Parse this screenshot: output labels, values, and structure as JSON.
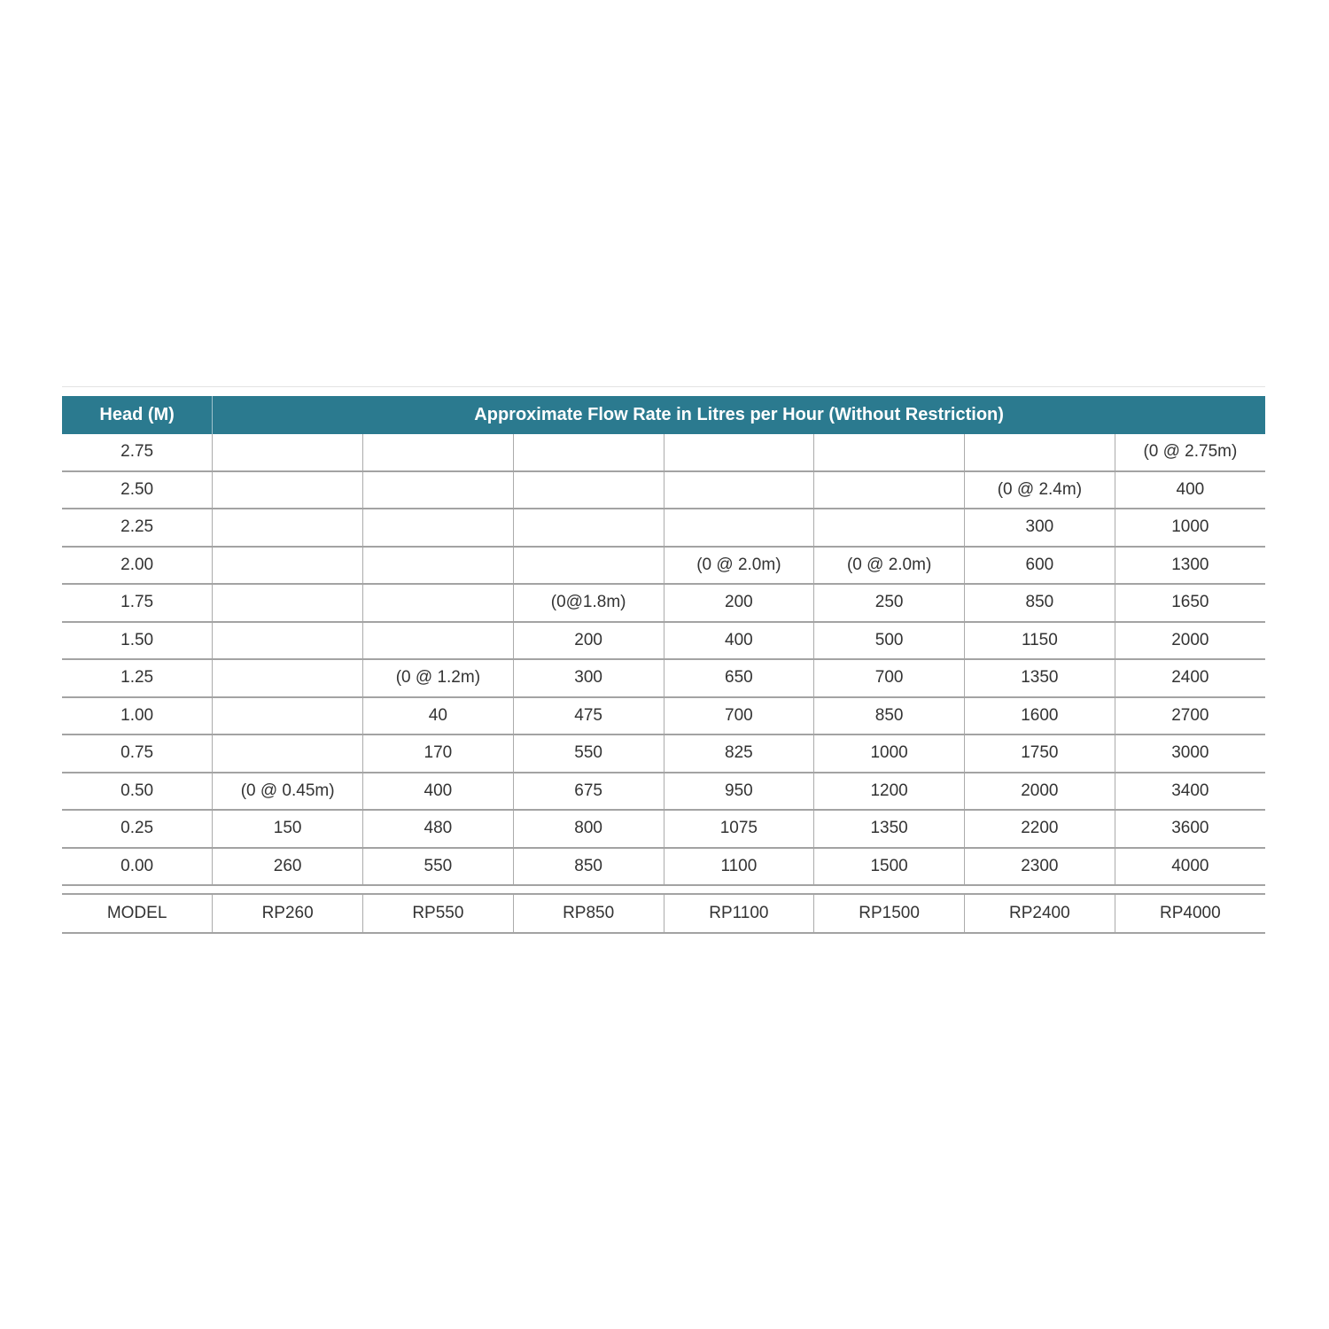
{
  "colors": {
    "header_bg": "#2B7A8F",
    "header_text": "#FFFFFF",
    "grid_line": "#A3A3A3",
    "cell_text": "#333333",
    "page_bg": "#FFFFFF"
  },
  "table": {
    "header": {
      "head_label": "Head (M)",
      "title": "Approximate Flow Rate in Litres per Hour (Without Restriction)"
    },
    "rows": [
      {
        "head": "2.75",
        "cells": [
          "",
          "",
          "",
          "",
          "",
          "",
          "(0 @ 2.75m)"
        ]
      },
      {
        "head": "2.50",
        "cells": [
          "",
          "",
          "",
          "",
          "",
          "(0 @ 2.4m)",
          "400"
        ]
      },
      {
        "head": "2.25",
        "cells": [
          "",
          "",
          "",
          "",
          "",
          "300",
          "1000"
        ]
      },
      {
        "head": "2.00",
        "cells": [
          "",
          "",
          "",
          "(0 @ 2.0m)",
          "(0 @ 2.0m)",
          "600",
          "1300"
        ]
      },
      {
        "head": "1.75",
        "cells": [
          "",
          "",
          "(0@1.8m)",
          "200",
          "250",
          "850",
          "1650"
        ]
      },
      {
        "head": "1.50",
        "cells": [
          "",
          "",
          "200",
          "400",
          "500",
          "1150",
          "2000"
        ]
      },
      {
        "head": "1.25",
        "cells": [
          "",
          "(0 @ 1.2m)",
          "300",
          "650",
          "700",
          "1350",
          "2400"
        ]
      },
      {
        "head": "1.00",
        "cells": [
          "",
          "40",
          "475",
          "700",
          "850",
          "1600",
          "2700"
        ]
      },
      {
        "head": "0.75",
        "cells": [
          "",
          "170",
          "550",
          "825",
          "1000",
          "1750",
          "3000"
        ]
      },
      {
        "head": "0.50",
        "cells": [
          "(0 @ 0.45m)",
          "400",
          "675",
          "950",
          "1200",
          "2000",
          "3400"
        ]
      },
      {
        "head": "0.25",
        "cells": [
          "150",
          "480",
          "800",
          "1075",
          "1350",
          "2200",
          "3600"
        ]
      },
      {
        "head": "0.00",
        "cells": [
          "260",
          "550",
          "850",
          "1100",
          "1500",
          "2300",
          "4000"
        ]
      }
    ],
    "model_row": {
      "label": "MODEL",
      "cells": [
        "RP260",
        "RP550",
        "RP850",
        "RP1100",
        "RP1500",
        "RP2400",
        "RP4000"
      ]
    }
  },
  "chart_data": {
    "type": "table",
    "title": "Approximate Flow Rate in Litres per Hour (Without Restriction)",
    "columns": [
      "Head (M)",
      "RP260",
      "RP550",
      "RP850",
      "RP1100",
      "RP1500",
      "RP2400",
      "RP4000"
    ],
    "rows": [
      [
        "2.75",
        "",
        "",
        "",
        "",
        "",
        "",
        "(0 @ 2.75m)"
      ],
      [
        "2.50",
        "",
        "",
        "",
        "",
        "",
        "(0 @ 2.4m)",
        "400"
      ],
      [
        "2.25",
        "",
        "",
        "",
        "",
        "",
        "300",
        "1000"
      ],
      [
        "2.00",
        "",
        "",
        "",
        "(0 @ 2.0m)",
        "(0 @ 2.0m)",
        "600",
        "1300"
      ],
      [
        "1.75",
        "",
        "",
        "(0@1.8m)",
        "200",
        "250",
        "850",
        "1650"
      ],
      [
        "1.50",
        "",
        "",
        "200",
        "400",
        "500",
        "1150",
        "2000"
      ],
      [
        "1.25",
        "",
        "(0 @ 1.2m)",
        "300",
        "650",
        "700",
        "1350",
        "2400"
      ],
      [
        "1.00",
        "",
        "40",
        "475",
        "700",
        "850",
        "1600",
        "2700"
      ],
      [
        "0.75",
        "",
        "170",
        "550",
        "825",
        "1000",
        "1750",
        "3000"
      ],
      [
        "0.50",
        "(0 @ 0.45m)",
        "400",
        "675",
        "950",
        "1200",
        "2000",
        "3400"
      ],
      [
        "0.25",
        "150",
        "480",
        "800",
        "1075",
        "1350",
        "2200",
        "3600"
      ],
      [
        "0.00",
        "260",
        "550",
        "850",
        "1100",
        "1500",
        "2300",
        "4000"
      ],
      [
        "MODEL",
        "RP260",
        "RP550",
        "RP850",
        "RP1100",
        "RP1500",
        "RP2400",
        "RP4000"
      ]
    ],
    "layout": {
      "header_row_bg": "#2B7A8F",
      "grid": true,
      "first_column_label": "Head (M)"
    }
  }
}
